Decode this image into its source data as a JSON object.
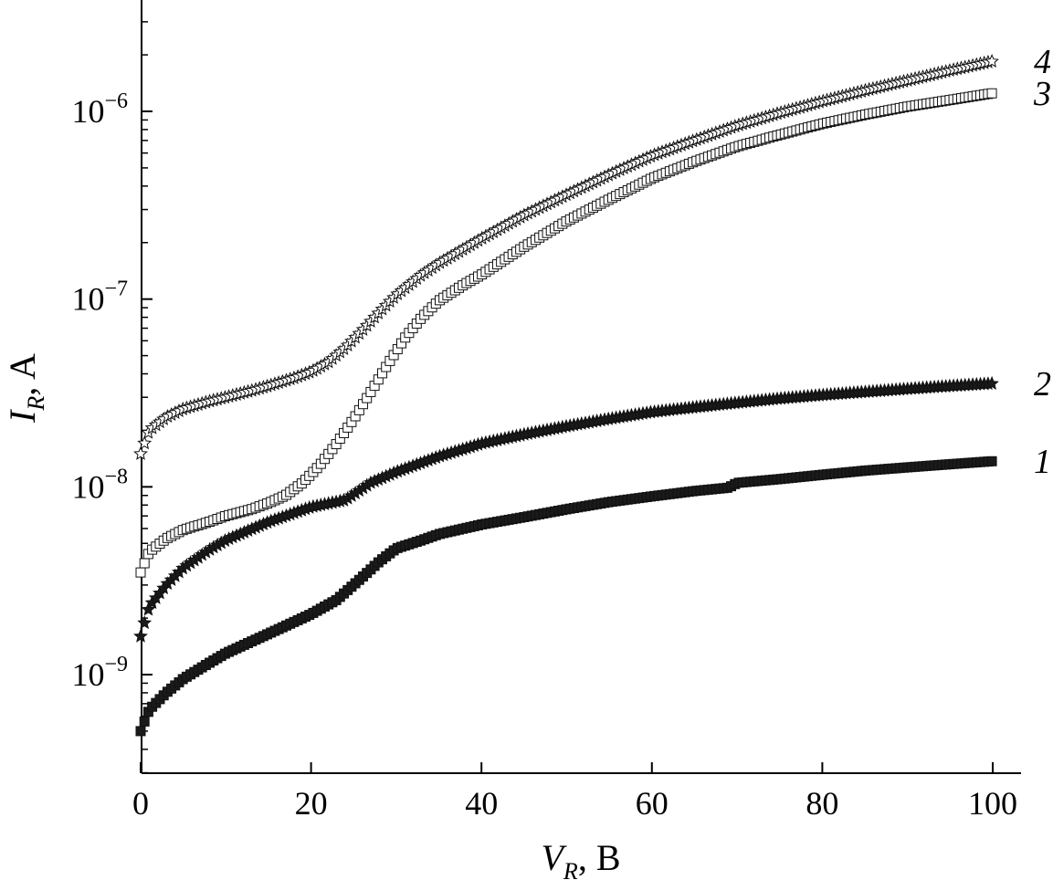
{
  "chart_data": {
    "type": "scatter",
    "title": "",
    "xlabel": {
      "symbol": "V",
      "subscript": "R",
      "unit": ", B"
    },
    "ylabel": {
      "symbol": "I",
      "subscript": "R",
      "unit": ", A"
    },
    "xlim": [
      0,
      100
    ],
    "ylim": [
      3e-10,
      4e-06
    ],
    "y_scale": "log",
    "grid": false,
    "x_ticks": [
      {
        "value": 0,
        "label": "0"
      },
      {
        "value": 20,
        "label": "20"
      },
      {
        "value": 40,
        "label": "40"
      },
      {
        "value": 60,
        "label": "60"
      },
      {
        "value": 80,
        "label": "80"
      },
      {
        "value": 100,
        "label": "100"
      }
    ],
    "y_ticks": [
      {
        "value": 1e-09,
        "base": "10",
        "exponent": "−9"
      },
      {
        "value": 1e-08,
        "base": "10",
        "exponent": "−8"
      },
      {
        "value": 1e-07,
        "base": "10",
        "exponent": "−7"
      },
      {
        "value": 1e-06,
        "base": "10",
        "exponent": "−6"
      }
    ],
    "series": [
      {
        "name": "1",
        "marker": "square",
        "fill": "#1a1a1a",
        "points": [
          [
            0,
            5e-10
          ],
          [
            1,
            6.5e-10
          ],
          [
            3,
            8e-10
          ],
          [
            5,
            9.5e-10
          ],
          [
            8,
            1.15e-09
          ],
          [
            10,
            1.3e-09
          ],
          [
            15,
            1.65e-09
          ],
          [
            20,
            2.1e-09
          ],
          [
            23,
            2.5e-09
          ],
          [
            26,
            3.3e-09
          ],
          [
            28,
            4e-09
          ],
          [
            30,
            4.7e-09
          ],
          [
            33,
            5.2e-09
          ],
          [
            35,
            5.6e-09
          ],
          [
            40,
            6.3e-09
          ],
          [
            45,
            6.9e-09
          ],
          [
            50,
            7.6e-09
          ],
          [
            55,
            8.3e-09
          ],
          [
            60,
            8.9e-09
          ],
          [
            65,
            9.5e-09
          ],
          [
            69,
            9.9e-09
          ],
          [
            70,
            1.05e-08
          ],
          [
            75,
            1.1e-08
          ],
          [
            80,
            1.16e-08
          ],
          [
            85,
            1.22e-08
          ],
          [
            90,
            1.27e-08
          ],
          [
            95,
            1.32e-08
          ],
          [
            100,
            1.37e-08
          ]
        ]
      },
      {
        "name": "2",
        "marker": "star",
        "fill": "#1a1a1a",
        "points": [
          [
            0,
            1.6e-09
          ],
          [
            1,
            2.3e-09
          ],
          [
            3,
            3e-09
          ],
          [
            5,
            3.7e-09
          ],
          [
            8,
            4.6e-09
          ],
          [
            10,
            5.2e-09
          ],
          [
            15,
            6.5e-09
          ],
          [
            20,
            7.8e-09
          ],
          [
            24,
            8.5e-09
          ],
          [
            27,
            1.05e-08
          ],
          [
            30,
            1.2e-08
          ],
          [
            35,
            1.45e-08
          ],
          [
            40,
            1.7e-08
          ],
          [
            45,
            1.9e-08
          ],
          [
            50,
            2.1e-08
          ],
          [
            55,
            2.3e-08
          ],
          [
            60,
            2.5e-08
          ],
          [
            65,
            2.65e-08
          ],
          [
            70,
            2.8e-08
          ],
          [
            75,
            2.95e-08
          ],
          [
            80,
            3.08e-08
          ],
          [
            85,
            3.2e-08
          ],
          [
            90,
            3.32e-08
          ],
          [
            95,
            3.44e-08
          ],
          [
            100,
            3.55e-08
          ]
        ]
      },
      {
        "name": "3",
        "marker": "square",
        "fill": "#ffffff",
        "points": [
          [
            0,
            3.5e-09
          ],
          [
            1,
            4.5e-09
          ],
          [
            3,
            5.3e-09
          ],
          [
            5,
            5.9e-09
          ],
          [
            8,
            6.5e-09
          ],
          [
            10,
            7e-09
          ],
          [
            13,
            7.6e-09
          ],
          [
            15,
            8.2e-09
          ],
          [
            17,
            9e-09
          ],
          [
            19,
            1.05e-08
          ],
          [
            21,
            1.3e-08
          ],
          [
            23,
            1.7e-08
          ],
          [
            25,
            2.3e-08
          ],
          [
            27,
            3.2e-08
          ],
          [
            29,
            4.5e-08
          ],
          [
            31,
            6.2e-08
          ],
          [
            33,
            8e-08
          ],
          [
            35,
            9.8e-08
          ],
          [
            38,
            1.2e-07
          ],
          [
            40,
            1.35e-07
          ],
          [
            45,
            1.9e-07
          ],
          [
            50,
            2.6e-07
          ],
          [
            55,
            3.4e-07
          ],
          [
            60,
            4.4e-07
          ],
          [
            65,
            5.4e-07
          ],
          [
            70,
            6.5e-07
          ],
          [
            75,
            7.5e-07
          ],
          [
            80,
            8.6e-07
          ],
          [
            85,
            9.6e-07
          ],
          [
            90,
            1.06e-06
          ],
          [
            95,
            1.15e-06
          ],
          [
            100,
            1.25e-06
          ]
        ]
      },
      {
        "name": "4",
        "marker": "star",
        "fill": "#ffffff",
        "points": [
          [
            0,
            1.5e-08
          ],
          [
            1,
            2e-08
          ],
          [
            3,
            2.35e-08
          ],
          [
            5,
            2.6e-08
          ],
          [
            8,
            2.85e-08
          ],
          [
            10,
            3e-08
          ],
          [
            13,
            3.25e-08
          ],
          [
            15,
            3.45e-08
          ],
          [
            18,
            3.8e-08
          ],
          [
            20,
            4.1e-08
          ],
          [
            22,
            4.6e-08
          ],
          [
            24,
            5.5e-08
          ],
          [
            26,
            6.8e-08
          ],
          [
            28,
            8.5e-08
          ],
          [
            30,
            1.05e-07
          ],
          [
            33,
            1.35e-07
          ],
          [
            35,
            1.55e-07
          ],
          [
            40,
            2.1e-07
          ],
          [
            45,
            2.8e-07
          ],
          [
            50,
            3.6e-07
          ],
          [
            55,
            4.6e-07
          ],
          [
            60,
            5.8e-07
          ],
          [
            65,
            7e-07
          ],
          [
            70,
            8.4e-07
          ],
          [
            75,
            9.8e-07
          ],
          [
            80,
            1.13e-06
          ],
          [
            85,
            1.29e-06
          ],
          [
            90,
            1.46e-06
          ],
          [
            95,
            1.65e-06
          ],
          [
            100,
            1.85e-06
          ]
        ]
      }
    ]
  }
}
